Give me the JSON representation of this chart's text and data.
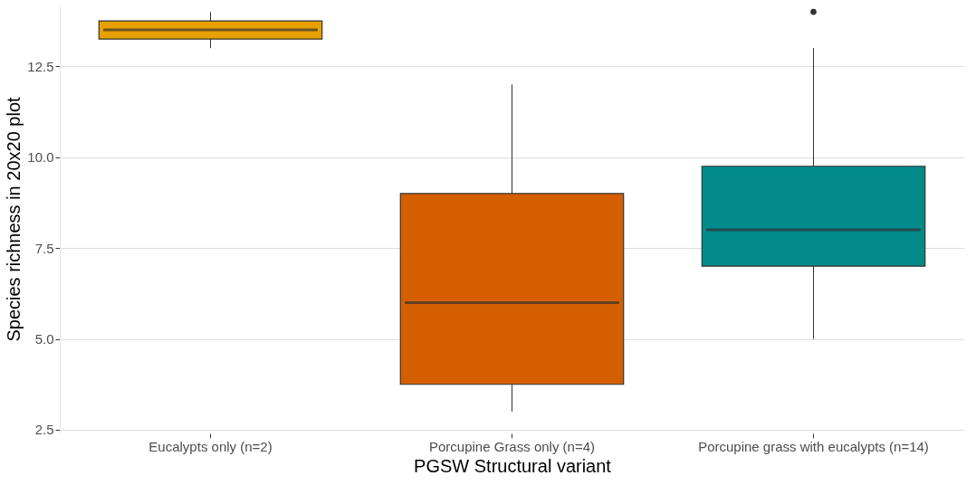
{
  "chart_data": {
    "type": "box",
    "xlabel": "PGSW Structural variant",
    "ylabel": "Species richness in 20x20 plot",
    "categories": [
      "Eucalypts only (n=2)",
      "Porcupine Grass only (n=4)",
      "Porcupine grass with eucalypts (n=14)"
    ],
    "boxes": [
      {
        "low": 13,
        "q1": 13.25,
        "median": 13.5,
        "q3": 13.75,
        "high": 14
      },
      {
        "low": 3,
        "q1": 3.75,
        "median": 6,
        "q3": 9,
        "high": 12
      },
      {
        "low": 5,
        "q1": 7,
        "median": 8,
        "q3": 9.75,
        "high": 13,
        "outliers": [
          14
        ]
      }
    ],
    "colors": [
      "#e6a000",
      "#d55e00",
      "#038a8a"
    ],
    "ylim": [
      2.4,
      14.2
    ],
    "yticks": [
      {
        "value": 2.5,
        "label": "2.5"
      },
      {
        "value": 5,
        "label": "5.0"
      },
      {
        "value": 7.5,
        "label": "7.5"
      },
      {
        "value": 10,
        "label": "10.0"
      },
      {
        "value": 12.5,
        "label": "12.5"
      }
    ],
    "grid": "y"
  }
}
